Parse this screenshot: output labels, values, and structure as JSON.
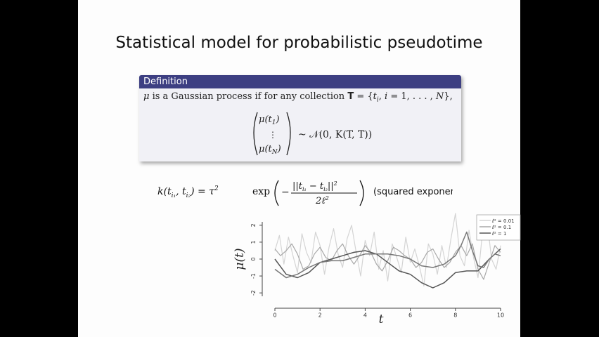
{
  "slide": {
    "title": "Statistical model for probabilistic pseudotime"
  },
  "definition": {
    "header": "Definition",
    "line_parts": {
      "mu": "μ",
      "text1": " is a Gaussian process if for any collection ",
      "T": "T",
      "eq": " = {",
      "ti": "t",
      "sub_i": "i",
      "comma": ", ",
      "i": "i",
      "rest": " = 1, . . . , ",
      "N": "N",
      "close": "},"
    },
    "vector_top": "μ(t",
    "vector_top_sub": "1",
    "vector_dots": "⋮",
    "vector_bottom": "μ(t",
    "vector_bottom_sub": "N",
    "close_paren": ")",
    "distribution": "~ 𝒩(0, K(T, T))"
  },
  "kernel": {
    "lhs": "k(t",
    "lhs_sub1": "i₁",
    "lhs_mid": ", t",
    "lhs_sub2": "i₂",
    "lhs_close": ") = τ",
    "tau_exp": "2",
    "exp_word": "exp",
    "numerator": "||t",
    "num_sub1": "i₁",
    "num_minus": " − t",
    "num_sub2": "i₂",
    "num_close": "||",
    "num_exp": "2",
    "denominator": "2ℓ",
    "den_exp": "2",
    "minus": "−",
    "note": "(squared exponential)"
  },
  "chart_data": {
    "type": "line",
    "xlabel": "t",
    "ylabel": "μ(t)",
    "xlim": [
      0,
      10
    ],
    "ylim": [
      -2.2,
      2.2
    ],
    "xticks": [
      "0",
      "2",
      "4",
      "6",
      "8",
      "10"
    ],
    "yticks": [
      "-2",
      "-1",
      "0",
      "1",
      "2"
    ],
    "legend_position": "top-right",
    "series": [
      {
        "name": "ℓ² = 0.01",
        "color": "#d4d4d4",
        "x": [
          0,
          0.2,
          0.4,
          0.6,
          0.8,
          1,
          1.2,
          1.4,
          1.6,
          1.8,
          2,
          2.2,
          2.4,
          2.6,
          2.8,
          3,
          3.2,
          3.4,
          3.6,
          3.8,
          4,
          4.2,
          4.4,
          4.6,
          4.8,
          5,
          5.2,
          5.4,
          5.6,
          5.8,
          6,
          6.2,
          6.4,
          6.6,
          6.8,
          7,
          7.2,
          7.4,
          7.6,
          7.8,
          8,
          8.2,
          8.4,
          8.6,
          8.8,
          9,
          9.2,
          9.4,
          9.6,
          9.8,
          10
        ],
        "values": [
          0.5,
          1.4,
          -0.3,
          1.3,
          0.2,
          -0.8,
          1.5,
          0.4,
          -0.2,
          1.6,
          0.8,
          -0.9,
          0.7,
          1.8,
          0.3,
          -0.5,
          1.2,
          2.0,
          0.4,
          -1.0,
          1.1,
          0.2,
          1.6,
          -0.6,
          0.5,
          -1.3,
          0.9,
          0.1,
          -0.8,
          1.3,
          -0.2,
          0.6,
          -0.4,
          -1.6,
          0.9,
          0.3,
          -0.9,
          0.8,
          -0.5,
          1.2,
          2.7,
          0.2,
          -0.4,
          1.7,
          0.1,
          -1.1,
          1.6,
          2.3,
          0.0,
          -0.6,
          0.8
        ]
      },
      {
        "name": "ℓ² = 0.1",
        "color": "#a8a8a8",
        "x": [
          0,
          0.25,
          0.5,
          0.75,
          1,
          1.25,
          1.5,
          1.75,
          2,
          2.25,
          2.5,
          2.75,
          3,
          3.25,
          3.5,
          3.75,
          4,
          4.25,
          4.5,
          4.75,
          5,
          5.25,
          5.5,
          5.75,
          6,
          6.25,
          6.5,
          6.75,
          7,
          7.25,
          7.5,
          7.75,
          8,
          8.25,
          8.5,
          8.75,
          9,
          9.25,
          9.5,
          9.75,
          10
        ],
        "values": [
          0.6,
          0.2,
          0.5,
          0.9,
          0.3,
          -0.6,
          -0.4,
          0.3,
          0.7,
          0.1,
          -0.1,
          0.5,
          0.9,
          0.2,
          -0.3,
          0.2,
          0.8,
          0.4,
          -0.3,
          -0.7,
          -0.1,
          0.7,
          0.5,
          0.2,
          0.0,
          -0.5,
          -0.2,
          0.4,
          0.6,
          0.0,
          -0.5,
          -0.2,
          0.4,
          0.8,
          0.2,
          0.9,
          -0.6,
          -1.2,
          -0.2,
          0.8,
          0.4
        ]
      },
      {
        "name": "ℓ² = 1",
        "color": "#555555",
        "x": [
          0,
          0.5,
          1,
          1.5,
          2,
          2.5,
          3,
          3.5,
          4,
          4.5,
          5,
          5.5,
          6,
          6.5,
          7,
          7.5,
          8,
          8.5,
          9,
          9.5,
          10
        ],
        "values": [
          0.0,
          -0.9,
          -1.1,
          -0.8,
          -0.2,
          0.0,
          0.2,
          0.4,
          0.5,
          0.3,
          -0.2,
          -0.7,
          -0.9,
          -1.4,
          -1.7,
          -1.4,
          -0.8,
          -0.7,
          -0.7,
          0.0,
          0.6
        ]
      },
      {
        "name": "",
        "color": "#777777",
        "x": [
          0,
          0.5,
          1,
          1.5,
          2,
          2.5,
          3,
          3.5,
          4,
          4.5,
          5,
          5.5,
          6,
          6.5,
          7,
          7.5,
          8,
          8.25,
          8.5,
          8.75,
          9,
          9.25,
          9.5,
          9.75,
          10
        ],
        "values": [
          -0.6,
          -1.1,
          -0.9,
          -0.5,
          -0.2,
          -0.1,
          -0.1,
          0.1,
          0.3,
          0.3,
          0.3,
          0.2,
          0.0,
          -0.4,
          -0.5,
          -0.3,
          0.2,
          0.8,
          1.6,
          0.5,
          -0.4,
          -0.5,
          0.0,
          0.3,
          0.2
        ]
      }
    ]
  }
}
